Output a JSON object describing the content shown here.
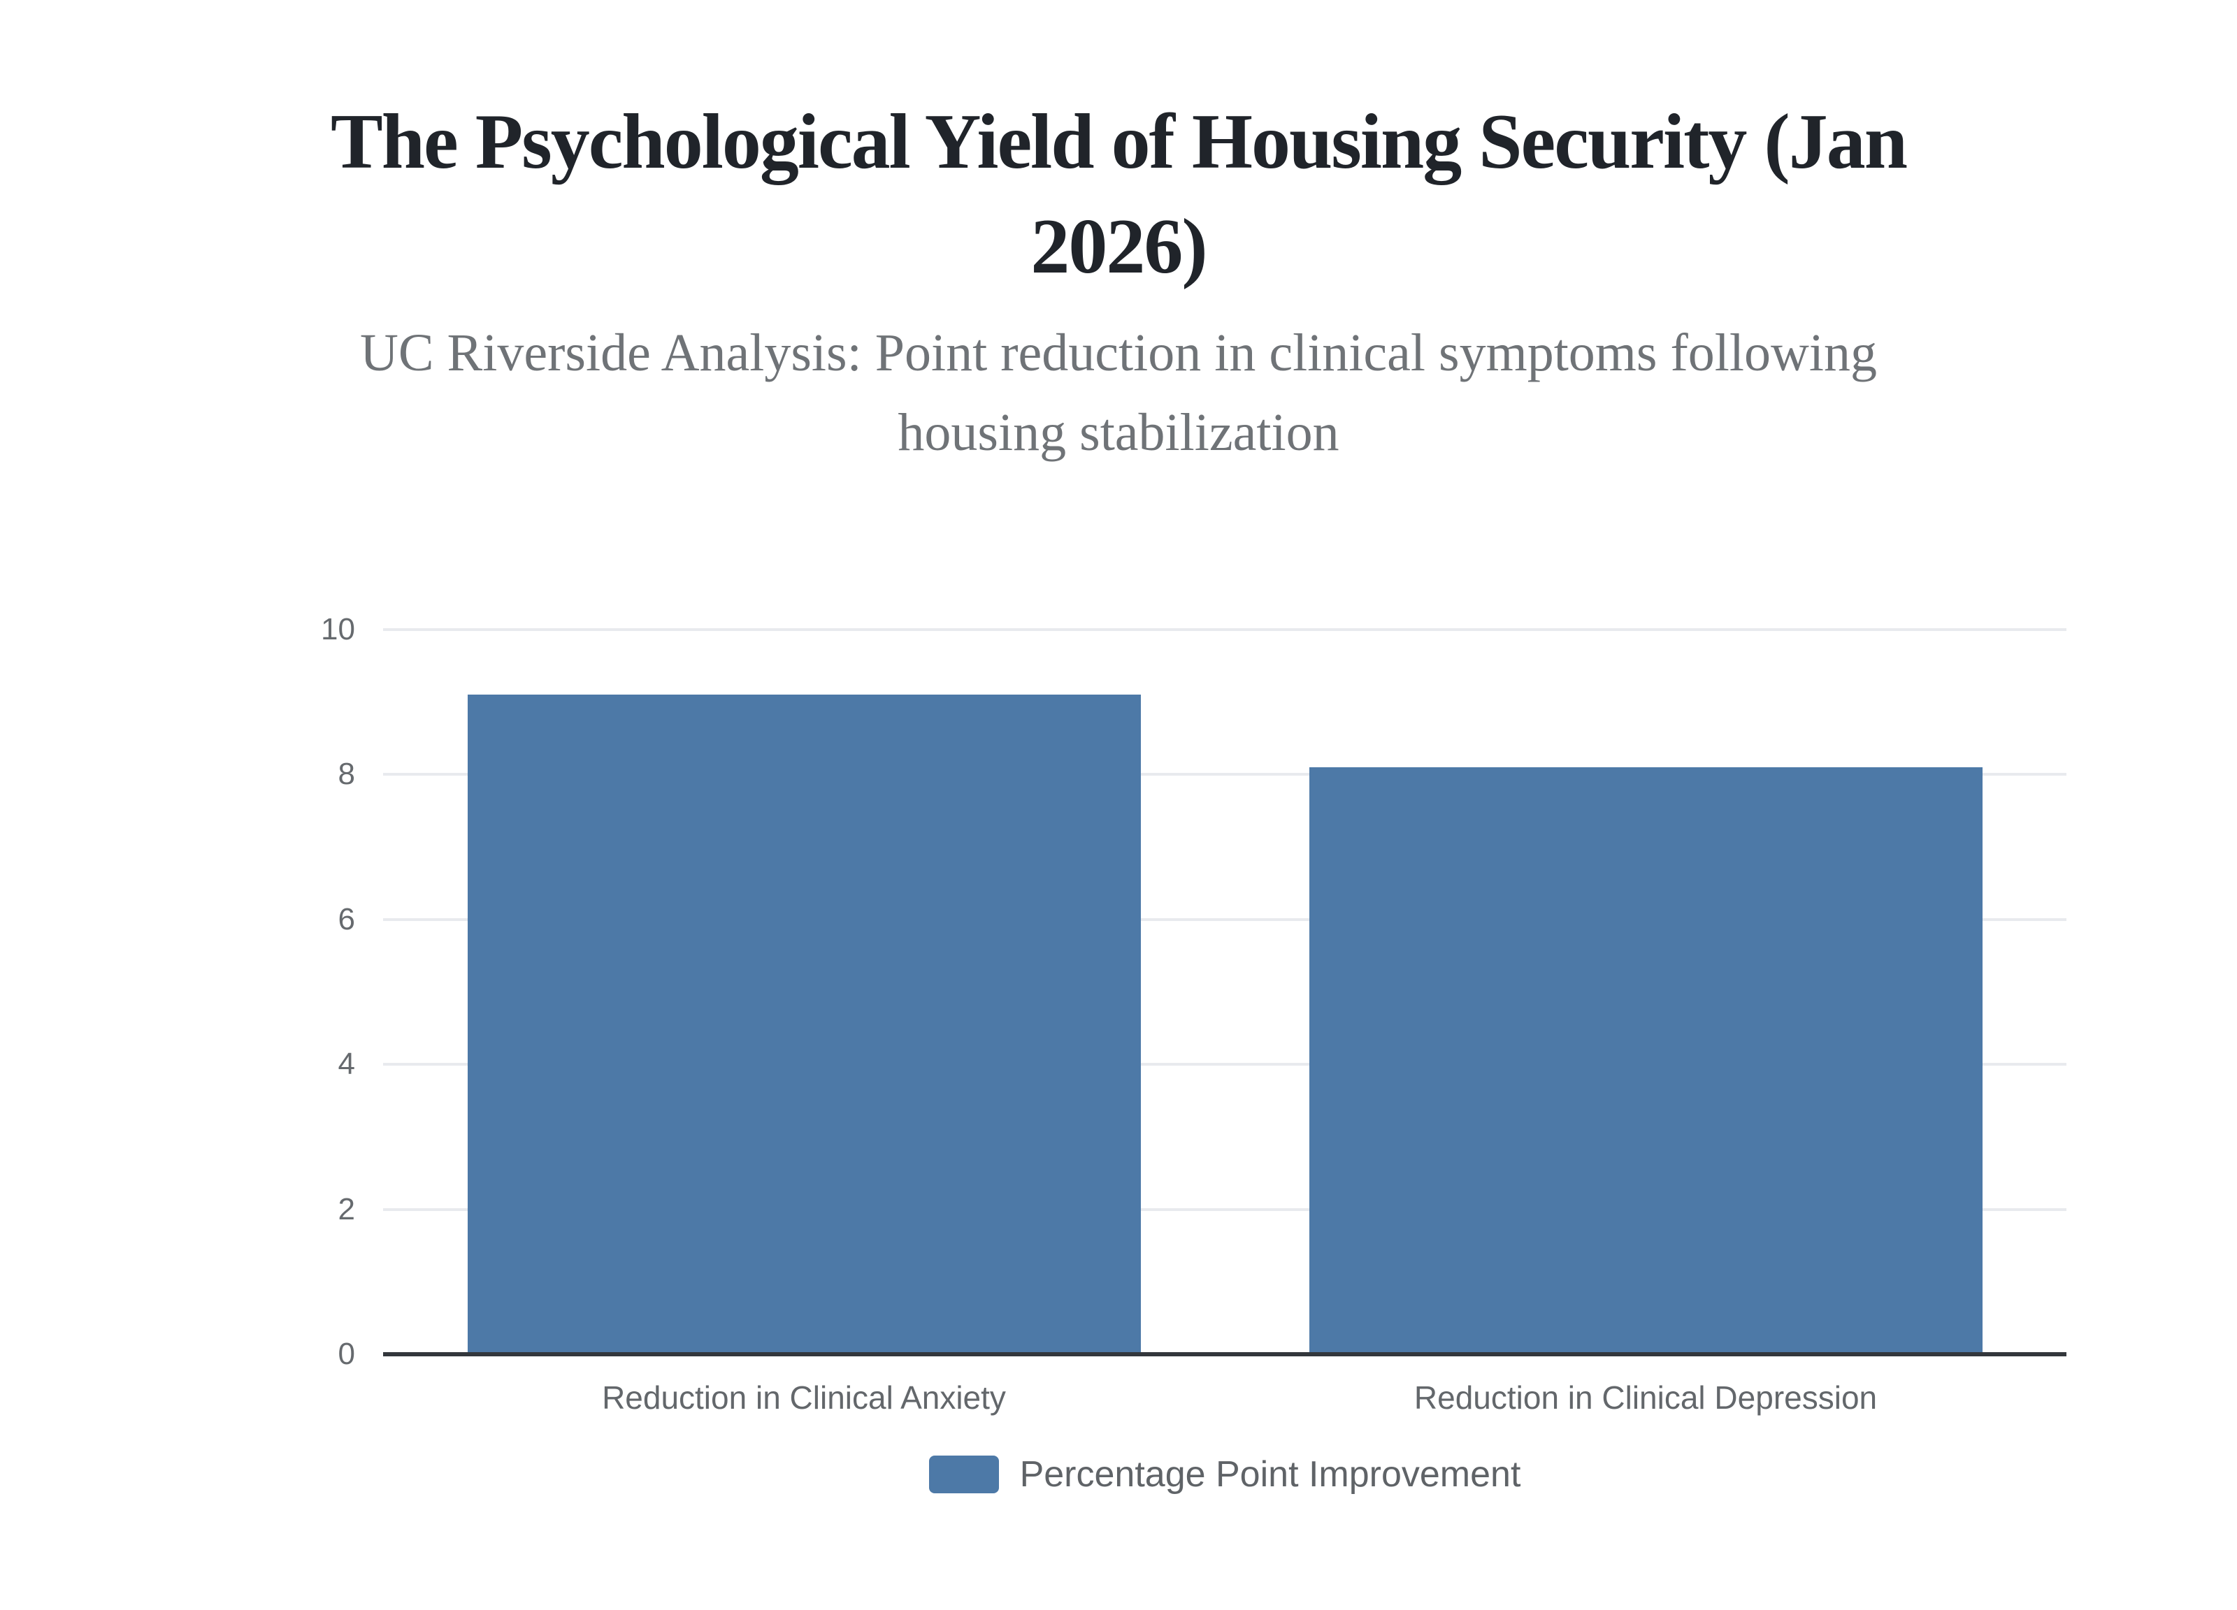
{
  "header": {
    "title": "The Psychological Yield of Housing Security (Jan 2026)",
    "title_lines": [
      "The Psychological Yield of Housing Security (Jan",
      "2026)"
    ],
    "subtitle": "UC Riverside Analysis: Point reduction in clinical symptoms following housing stabilization",
    "subtitle_lines": [
      "UC Riverside Analysis: Point reduction in clinical symptoms following",
      "housing stabilization"
    ]
  },
  "chart_data": {
    "type": "bar",
    "title": "The Psychological Yield of Housing Security (Jan 2026)",
    "subtitle": "UC Riverside Analysis: Point reduction in clinical symptoms following housing stabilization",
    "categories": [
      "Reduction in Clinical Anxiety",
      "Reduction in Clinical Depression"
    ],
    "series": [
      {
        "name": "Percentage Point Improvement",
        "values": [
          9.1,
          8.1
        ]
      }
    ],
    "xlabel": "",
    "ylabel": "",
    "ylim": [
      0,
      10
    ],
    "yticks": [
      0,
      2,
      4,
      6,
      8,
      10
    ],
    "grid": true,
    "legend_position": "bottom"
  },
  "legend": {
    "label": "Percentage Point Improvement"
  },
  "colors": {
    "bar": "#4d79a7",
    "axis": "#33373c",
    "gridline": "#e8eaee",
    "title": "#20242a",
    "subtitle": "#6f7377",
    "tick_label": "#666a6e",
    "category_label": "#63676b",
    "legend_text": "#5f6367",
    "background": "#ffffff"
  }
}
